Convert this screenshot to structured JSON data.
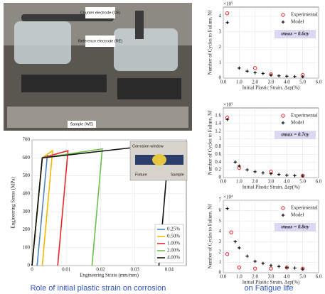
{
  "photo": {
    "labels": [
      "Counter electrode (CE)",
      "Reference electrode (RE)",
      "Sample (WE)"
    ]
  },
  "inset": {
    "labels": [
      "Corrosion window",
      "Fixture",
      "Sample"
    ]
  },
  "captions": [
    "Role of initial plastic strain on corrosion",
    "on Fatigue life"
  ],
  "chart_data": [
    {
      "type": "line",
      "xlabel": "Engineering Strain (mm/mm)",
      "ylabel": "Engineering Stress (MPa)",
      "xlim": [
        0,
        0.045
      ],
      "xticks": [
        0,
        0.01,
        0.02,
        0.03,
        0.04
      ],
      "ylim": [
        0,
        700
      ],
      "yticks": [
        0,
        100,
        200,
        300,
        400,
        500,
        600,
        700
      ],
      "legend": "lower right",
      "series": [
        {
          "name": "0.25%",
          "color": "#4f81bd",
          "x": [
            0,
            0.003,
            0.0045,
            0.0015
          ],
          "values": [
            0,
            600,
            620,
            0
          ]
        },
        {
          "name": "0.50%",
          "color": "#f5b800",
          "x": [
            0,
            0.003,
            0.006,
            0.003
          ],
          "values": [
            0,
            600,
            640,
            0
          ]
        },
        {
          "name": "1.00%",
          "color": "#e8262a",
          "x": [
            0,
            0.003,
            0.0105,
            0.0075
          ],
          "values": [
            0,
            600,
            640,
            0
          ]
        },
        {
          "name": "2.00%",
          "color": "#6cc04a",
          "x": [
            0,
            0.003,
            0.0205,
            0.0175
          ],
          "values": [
            0,
            600,
            650,
            0
          ]
        },
        {
          "name": "4.00%",
          "color": "#111111",
          "x": [
            0,
            0.003,
            0.04,
            0.037
          ],
          "values": [
            0,
            600,
            680,
            0
          ]
        }
      ]
    },
    {
      "type": "scatter",
      "xlabel": "Initial Plastic Strain, Δεp(%)",
      "ylabel": "Number of Cycles to Failure, Nf",
      "exponent_label": "×10⁵",
      "annotation": "σmax = 0.6σy",
      "xlim": [
        0,
        6
      ],
      "xticks": [
        {
          "value": 0,
          "label": "0.0"
        },
        {
          "value": 1,
          "label": "1.0"
        },
        {
          "value": 2,
          "label": "2.0"
        },
        {
          "value": 3,
          "label": "3.0"
        },
        {
          "value": 4,
          "label": "4.0"
        },
        {
          "value": 5,
          "label": "5.0"
        },
        {
          "value": 6,
          "label": "6.0"
        }
      ],
      "ylim": [
        0,
        4.6
      ],
      "yticks": [
        0,
        1,
        2,
        3,
        4
      ],
      "legend": "upper right",
      "series": [
        {
          "name": "Experimental",
          "color": "#e8262a",
          "marker": "o",
          "x": [
            0.25,
            2.0,
            3.0,
            5.0
          ],
          "values": [
            4.2,
            0.65,
            0.25,
            0.2
          ]
        },
        {
          "name": "Model",
          "color": "#111111",
          "marker": "+",
          "x": [
            0.25,
            1.0,
            1.5,
            2.0,
            2.5,
            3.0,
            3.5,
            4.0,
            4.5,
            5.0
          ],
          "values": [
            3.6,
            0.65,
            0.45,
            0.35,
            0.3,
            0.2,
            0.15,
            0.12,
            0.1,
            0.08
          ]
        }
      ]
    },
    {
      "type": "scatter",
      "xlabel": "Initial Plastic Strain, Δεp(%)",
      "ylabel": "Number of Cycles to Failure, Nf",
      "exponent_label": "×10⁵",
      "annotation": "σmax = 0.7σy",
      "xlim": [
        0,
        6
      ],
      "xticks": [
        {
          "value": 0,
          "label": "0.0"
        },
        {
          "value": 1,
          "label": "1.0"
        },
        {
          "value": 2,
          "label": "2.0"
        },
        {
          "value": 3,
          "label": "3.0"
        },
        {
          "value": 4,
          "label": "4.0"
        },
        {
          "value": 5,
          "label": "5.0"
        },
        {
          "value": 6,
          "label": "6.0"
        }
      ],
      "ylim": [
        0,
        1.8
      ],
      "yticks": [
        0,
        0.2,
        0.4,
        0.6,
        0.8,
        1,
        1.2,
        1.4,
        1.6
      ],
      "legend": "upper right",
      "series": [
        {
          "name": "Experimental",
          "color": "#e8262a",
          "marker": "o",
          "x": [
            0.25,
            1.0,
            3.0,
            5.0
          ],
          "values": [
            1.55,
            0.25,
            0.15,
            0.05
          ]
        },
        {
          "name": "Model",
          "color": "#111111",
          "marker": "+",
          "x": [
            0.25,
            0.75,
            1.0,
            1.5,
            2.0,
            2.5,
            3.0,
            3.5,
            4.0,
            4.5,
            5.0
          ],
          "values": [
            1.5,
            0.4,
            0.3,
            0.2,
            0.15,
            0.12,
            0.1,
            0.08,
            0.06,
            0.05,
            0.04
          ]
        }
      ]
    },
    {
      "type": "scatter",
      "xlabel": "Initial Plastic Strain, Δεp(%)",
      "ylabel": "Number of Cycles to Failure, Nf",
      "exponent_label": "×10⁴",
      "annotation": "σmax = 0.8σy",
      "xlim": [
        0,
        6
      ],
      "xticks": [
        {
          "value": 0,
          "label": "0.0"
        },
        {
          "value": 1,
          "label": "1.0"
        },
        {
          "value": 2,
          "label": "2.0"
        },
        {
          "value": 3,
          "label": "3.0"
        },
        {
          "value": 4,
          "label": "4.0"
        },
        {
          "value": 5,
          "label": "5.0"
        },
        {
          "value": 6,
          "label": "6.0"
        }
      ],
      "ylim": [
        0,
        7
      ],
      "yticks": [
        0,
        1,
        2,
        3,
        4,
        5,
        6,
        7
      ],
      "legend": "upper right",
      "series": [
        {
          "name": "Experimental",
          "color": "#e8262a",
          "marker": "o",
          "x": [
            0.25,
            0.5,
            1.0,
            2.0,
            3.0,
            4.0,
            5.0
          ],
          "values": [
            1.8,
            3.9,
            0.5,
            0.4,
            0.4,
            0.5,
            0.4
          ]
        },
        {
          "name": "Model",
          "color": "#111111",
          "marker": "+",
          "x": [
            0.25,
            0.75,
            1.0,
            1.5,
            2.0,
            2.5,
            3.0,
            3.5,
            4.0,
            4.5,
            5.0
          ],
          "values": [
            6.2,
            3.0,
            2.4,
            1.6,
            1.1,
            0.9,
            0.7,
            0.6,
            0.5,
            0.45,
            0.35
          ]
        }
      ]
    }
  ]
}
